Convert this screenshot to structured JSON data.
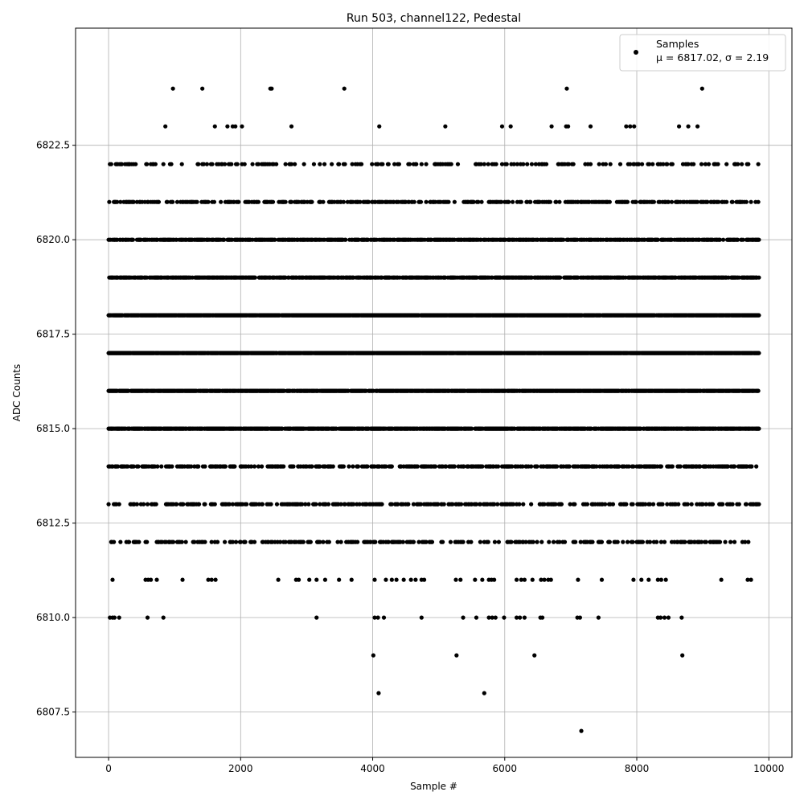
{
  "chart_data": {
    "type": "scatter",
    "title": "Run 503, channel122, Pedestal",
    "xlabel": "Sample #",
    "ylabel": "ADC Counts",
    "xlim": [
      -500,
      10350
    ],
    "ylim": [
      6806.3,
      6825.6
    ],
    "xticks": [
      0,
      2000,
      4000,
      6000,
      8000,
      10000
    ],
    "xtick_labels": [
      "0",
      "2000",
      "4000",
      "6000",
      "8000",
      "10000"
    ],
    "yticks": [
      6807.5,
      6810.0,
      6812.5,
      6815.0,
      6817.5,
      6820.0,
      6822.5
    ],
    "ytick_labels": [
      "6807.5",
      "6810.0",
      "6812.5",
      "6815.0",
      "6817.5",
      "6820.0",
      "6822.5"
    ],
    "grid": true,
    "legend_position": "top-right",
    "marker_color": "#000000",
    "series": [
      {
        "name": "Samples",
        "legend_stats": "μ = 6817.02, σ = 2.19",
        "x_range": [
          0,
          9850
        ],
        "level_density": {
          "6813": 0.33,
          "6814": 0.42,
          "6815": 0.78,
          "6816": 0.88,
          "6817": 0.96,
          "6818": 0.94,
          "6819": 0.72,
          "6820": 0.62,
          "6821": 0.38,
          "6822": 0.2,
          "6812": 0.26,
          "6823": 0.0,
          "6824": 0.0,
          "6811": 0.0,
          "6810": 0.0,
          "6809": 0.0,
          "6808": 0.0,
          "6807": 0.0
        },
        "sparse_points": [
          [
            975,
            6824
          ],
          [
            1420,
            6824
          ],
          [
            2450,
            6824
          ],
          [
            2470,
            6824
          ],
          [
            3570,
            6824
          ],
          [
            6940,
            6824
          ],
          [
            8990,
            6824
          ],
          [
            860,
            6823
          ],
          [
            1610,
            6823
          ],
          [
            1800,
            6823
          ],
          [
            1880,
            6823
          ],
          [
            1920,
            6823
          ],
          [
            2020,
            6823
          ],
          [
            2770,
            6823
          ],
          [
            4100,
            6823
          ],
          [
            5100,
            6823
          ],
          [
            5960,
            6823
          ],
          [
            6090,
            6823
          ],
          [
            6710,
            6823
          ],
          [
            6930,
            6823
          ],
          [
            6960,
            6823
          ],
          [
            7300,
            6823
          ],
          [
            7840,
            6823
          ],
          [
            7900,
            6823
          ],
          [
            7960,
            6823
          ],
          [
            8640,
            6823
          ],
          [
            8780,
            6823
          ],
          [
            8920,
            6823
          ],
          [
            60,
            6811
          ],
          [
            560,
            6811
          ],
          [
            600,
            6811
          ],
          [
            640,
            6811
          ],
          [
            730,
            6811
          ],
          [
            1120,
            6811
          ],
          [
            1510,
            6811
          ],
          [
            1560,
            6811
          ],
          [
            1620,
            6811
          ],
          [
            2570,
            6811
          ],
          [
            2840,
            6811
          ],
          [
            2880,
            6811
          ],
          [
            3040,
            6811
          ],
          [
            3150,
            6811
          ],
          [
            3280,
            6811
          ],
          [
            3490,
            6811
          ],
          [
            3680,
            6811
          ],
          [
            4030,
            6811
          ],
          [
            4200,
            6811
          ],
          [
            4290,
            6811
          ],
          [
            4360,
            6811
          ],
          [
            4470,
            6811
          ],
          [
            4580,
            6811
          ],
          [
            4650,
            6811
          ],
          [
            4740,
            6811
          ],
          [
            4780,
            6811
          ],
          [
            5260,
            6811
          ],
          [
            5330,
            6811
          ],
          [
            5550,
            6811
          ],
          [
            5660,
            6811
          ],
          [
            5760,
            6811
          ],
          [
            5800,
            6811
          ],
          [
            5840,
            6811
          ],
          [
            6180,
            6811
          ],
          [
            6250,
            6811
          ],
          [
            6300,
            6811
          ],
          [
            6420,
            6811
          ],
          [
            6550,
            6811
          ],
          [
            6600,
            6811
          ],
          [
            6660,
            6811
          ],
          [
            6700,
            6811
          ],
          [
            7110,
            6811
          ],
          [
            7470,
            6811
          ],
          [
            7950,
            6811
          ],
          [
            8070,
            6811
          ],
          [
            8180,
            6811
          ],
          [
            8320,
            6811
          ],
          [
            8370,
            6811
          ],
          [
            8440,
            6811
          ],
          [
            9280,
            6811
          ],
          [
            9680,
            6811
          ],
          [
            9730,
            6811
          ],
          [
            20,
            6810
          ],
          [
            60,
            6810
          ],
          [
            90,
            6810
          ],
          [
            160,
            6810
          ],
          [
            590,
            6810
          ],
          [
            830,
            6810
          ],
          [
            3150,
            6810
          ],
          [
            4030,
            6810
          ],
          [
            4080,
            6810
          ],
          [
            4170,
            6810
          ],
          [
            4740,
            6810
          ],
          [
            5370,
            6810
          ],
          [
            5570,
            6810
          ],
          [
            5760,
            6810
          ],
          [
            5810,
            6810
          ],
          [
            5860,
            6810
          ],
          [
            5990,
            6810
          ],
          [
            6180,
            6810
          ],
          [
            6230,
            6810
          ],
          [
            6300,
            6810
          ],
          [
            6540,
            6810
          ],
          [
            6570,
            6810
          ],
          [
            7100,
            6810
          ],
          [
            7140,
            6810
          ],
          [
            7420,
            6810
          ],
          [
            8320,
            6810
          ],
          [
            8360,
            6810
          ],
          [
            8420,
            6810
          ],
          [
            8480,
            6810
          ],
          [
            8680,
            6810
          ],
          [
            4010,
            6809
          ],
          [
            5270,
            6809
          ],
          [
            6450,
            6809
          ],
          [
            8690,
            6809
          ],
          [
            4090,
            6808
          ],
          [
            5690,
            6808
          ],
          [
            7160,
            6807
          ]
        ]
      }
    ]
  }
}
